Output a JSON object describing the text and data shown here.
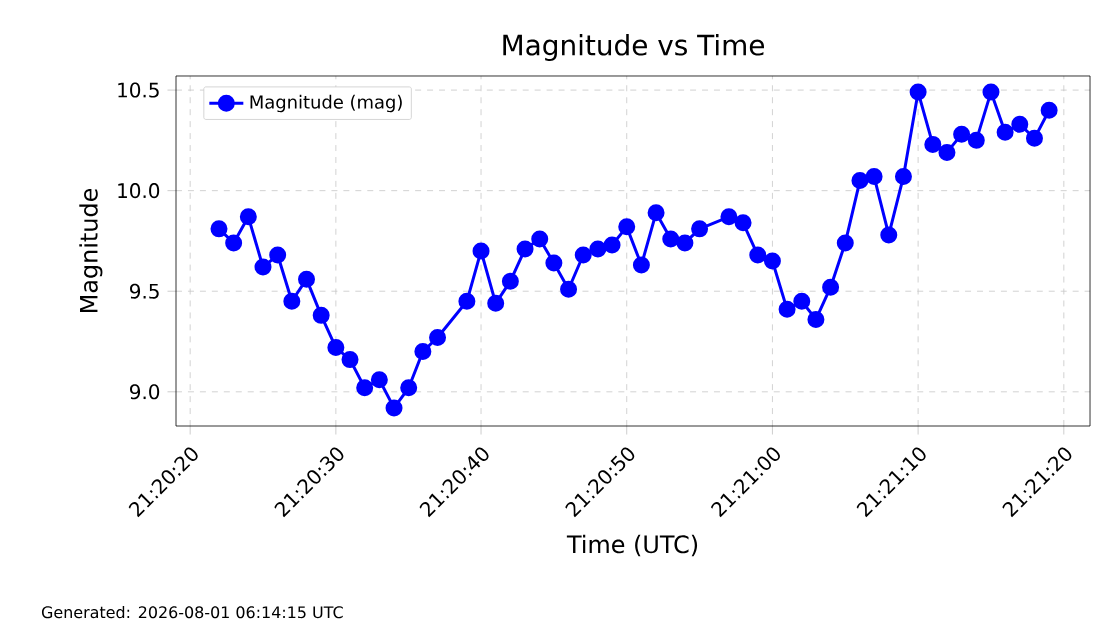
{
  "chart_data": {
    "type": "line",
    "title": "Magnitude vs Time",
    "xlabel": "Time (UTC)",
    "ylabel": "Magnitude",
    "annotations": [
      "Generated: 2026-08-01 06:14:15 UTC"
    ],
    "x": [
      21.33944,
      21.33972,
      21.34,
      21.34028,
      21.34056,
      21.34083,
      21.34111,
      21.34139,
      21.34167,
      21.34194,
      21.34222,
      21.3425,
      21.34278,
      21.34306,
      21.34333,
      21.34361,
      21.34417,
      21.34444,
      21.34472,
      21.345,
      21.34528,
      21.34556,
      21.34583,
      21.34611,
      21.34639,
      21.34667,
      21.34694,
      21.34722,
      21.3475,
      21.34778,
      21.34806,
      21.34833,
      21.34861,
      21.34917,
      21.34944,
      21.34972,
      21.35,
      21.35028,
      21.35056,
      21.35083,
      21.35111,
      21.35139,
      21.35167,
      21.35194,
      21.35222,
      21.3525,
      21.35278,
      21.35306,
      21.35333,
      21.35361,
      21.35389,
      21.35417,
      21.35444,
      21.35472,
      21.355,
      21.35528
    ],
    "series": [
      {
        "name": "Magnitude (mag)",
        "color": "#0000ff",
        "values": [
          9.81,
          9.74,
          9.87,
          9.62,
          9.68,
          9.45,
          9.56,
          9.38,
          9.22,
          9.16,
          9.02,
          9.06,
          8.92,
          9.02,
          9.2,
          9.27,
          9.45,
          9.7,
          9.44,
          9.55,
          9.71,
          9.76,
          9.64,
          9.51,
          9.68,
          9.71,
          9.73,
          9.82,
          9.63,
          9.89,
          9.76,
          9.74,
          9.81,
          9.87,
          9.84,
          9.68,
          9.65,
          9.41,
          9.45,
          9.36,
          9.52,
          9.74,
          10.05,
          10.07,
          9.78,
          10.07,
          10.49,
          10.23,
          10.19,
          10.28,
          10.25,
          10.49,
          10.29,
          10.33,
          10.26,
          10.4
        ]
      }
    ],
    "xlim": [
      21.33862,
      21.35606
    ],
    "xticks": [
      {
        "value": 21.33889,
        "label": "21:20:20"
      },
      {
        "value": 21.34167,
        "label": "21:20:30"
      },
      {
        "value": 21.34444,
        "label": "21:20:40"
      },
      {
        "value": 21.34722,
        "label": "21:20:50"
      },
      {
        "value": 21.35,
        "label": "21:21:00"
      },
      {
        "value": 21.35278,
        "label": "21:21:10"
      },
      {
        "value": 21.35556,
        "label": "21:21:20"
      }
    ],
    "ylim": [
      8.83,
      10.57
    ],
    "yticks": [
      {
        "value": 9.0,
        "label": "9.0"
      },
      {
        "value": 9.5,
        "label": "9.5"
      },
      {
        "value": 10.0,
        "label": "10.0"
      },
      {
        "value": 10.5,
        "label": "10.5"
      }
    ],
    "grid": true,
    "legend": "top left",
    "marker": "circle",
    "line_style": "solid"
  }
}
